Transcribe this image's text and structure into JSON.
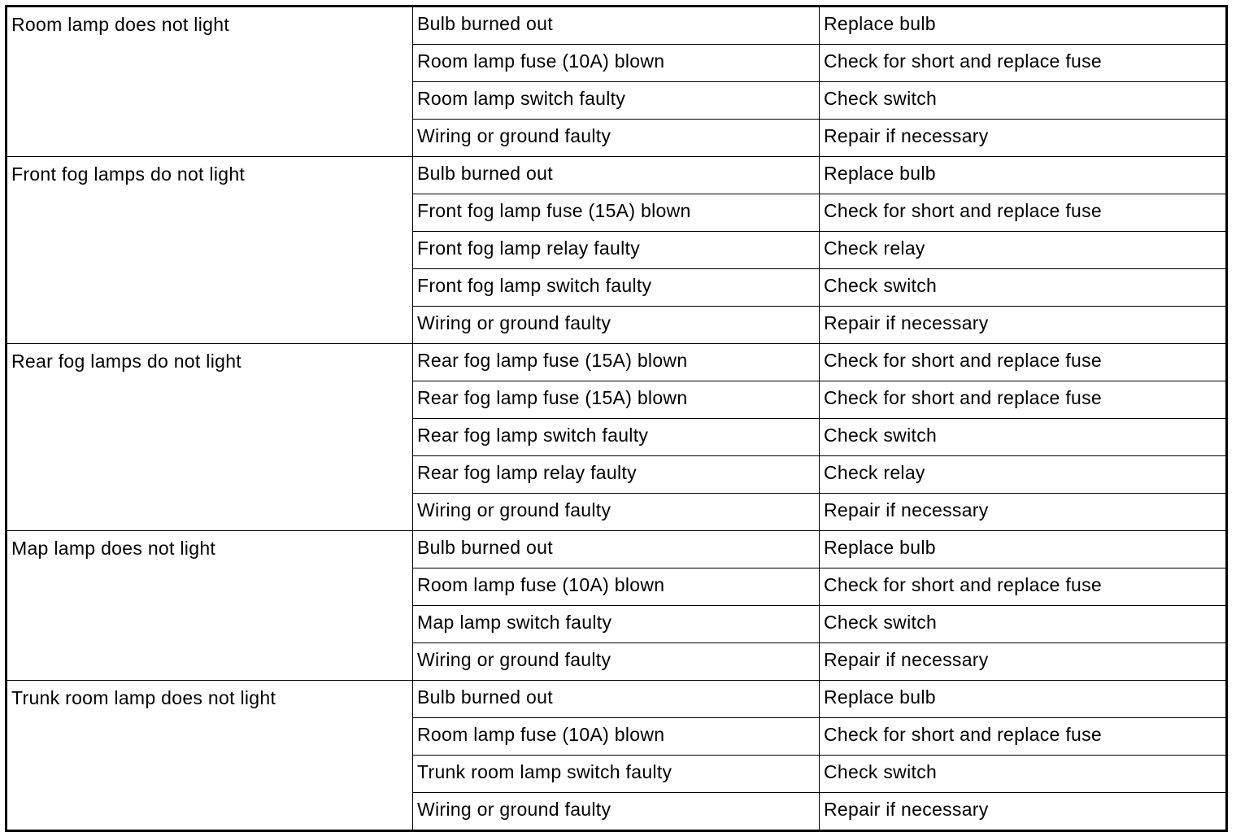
{
  "table": {
    "groups": [
      {
        "symptom": "Room lamp does not light",
        "rows": [
          [
            "Bulb burned out",
            "Replace bulb"
          ],
          [
            "Room lamp fuse (10A) blown",
            "Check for short and replace fuse"
          ],
          [
            "Room lamp switch faulty",
            "Check switch"
          ],
          [
            "Wiring or ground faulty",
            "Repair if necessary"
          ]
        ]
      },
      {
        "symptom": "Front fog lamps do not light",
        "rows": [
          [
            "Bulb burned out",
            "Replace bulb"
          ],
          [
            "Front fog lamp fuse (15A) blown",
            "Check for short and replace fuse"
          ],
          [
            "Front fog lamp relay faulty",
            "Check relay"
          ],
          [
            "Front fog lamp switch faulty",
            "Check switch"
          ],
          [
            "Wiring or ground faulty",
            "Repair if necessary"
          ]
        ]
      },
      {
        "symptom": "Rear fog lamps do not light",
        "rows": [
          [
            "Rear fog lamp fuse (15A) blown",
            "Check for short and replace fuse"
          ],
          [
            "Rear fog lamp fuse (15A) blown",
            "Check for short and replace fuse"
          ],
          [
            "Rear fog lamp switch faulty",
            "Check switch"
          ],
          [
            "Rear fog lamp relay faulty",
            "Check relay"
          ],
          [
            "Wiring or ground faulty",
            "Repair if necessary"
          ]
        ]
      },
      {
        "symptom": "Map lamp does not light",
        "rows": [
          [
            "Bulb burned out",
            "Replace bulb"
          ],
          [
            "Room lamp fuse (10A) blown",
            "Check for short and replace fuse"
          ],
          [
            "Map lamp switch faulty",
            "Check switch"
          ],
          [
            "Wiring or ground faulty",
            "Repair if necessary"
          ]
        ]
      },
      {
        "symptom": "Trunk room lamp does not light",
        "rows": [
          [
            "Bulb burned out",
            "Replace bulb"
          ],
          [
            "Room lamp fuse (10A) blown",
            "Check for short and replace fuse"
          ],
          [
            "Trunk room lamp switch faulty",
            "Check switch"
          ],
          [
            "Wiring or ground faulty",
            "Repair if necessary"
          ]
        ]
      }
    ]
  }
}
